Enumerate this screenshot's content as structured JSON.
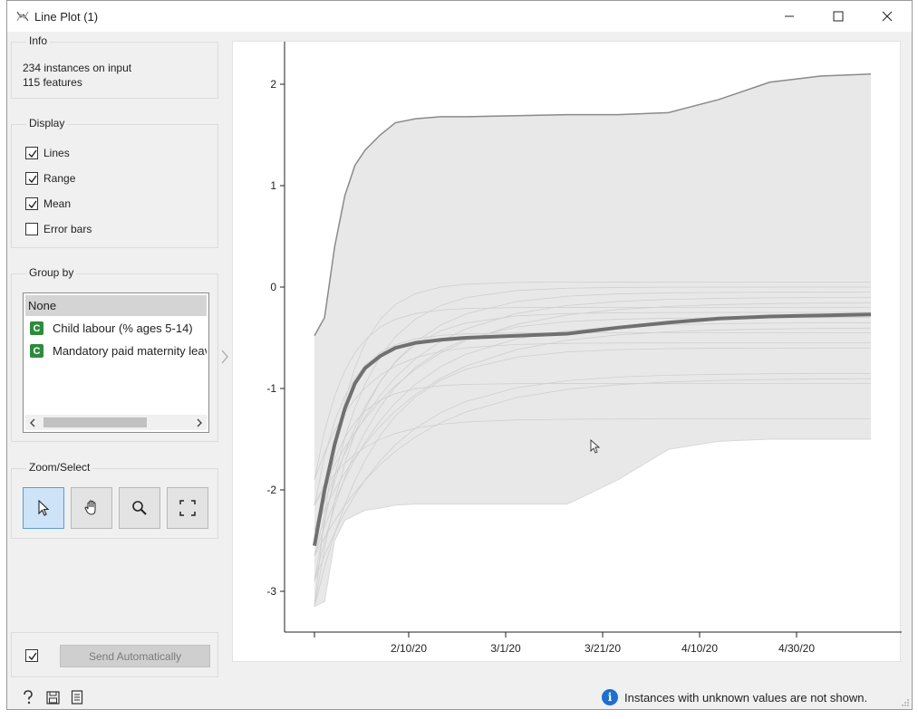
{
  "window": {
    "title": "Line Plot (1)"
  },
  "info": {
    "title": "Info",
    "instances": "234 instances on input",
    "features": "115 features"
  },
  "display": {
    "title": "Display",
    "options": [
      {
        "label": "Lines",
        "checked": true
      },
      {
        "label": "Range",
        "checked": true
      },
      {
        "label": "Mean",
        "checked": true
      },
      {
        "label": "Error bars",
        "checked": false
      }
    ]
  },
  "group_by": {
    "title": "Group by",
    "items": [
      {
        "label": "None",
        "badge": "",
        "selected": true
      },
      {
        "label": "Child labour  (% ages 5-14)",
        "badge": "C",
        "selected": false
      },
      {
        "label": "Mandatory paid maternity leave",
        "badge": "C",
        "selected": false
      }
    ]
  },
  "zoom_select": {
    "title": "Zoom/Select",
    "tools": [
      {
        "name": "select-tool-button",
        "icon": "cursor-arrow-icon",
        "active": true
      },
      {
        "name": "pan-tool-button",
        "icon": "hand-icon",
        "active": false
      },
      {
        "name": "zoom-tool-button",
        "icon": "magnifier-icon",
        "active": false
      },
      {
        "name": "reset-zoom-button",
        "icon": "fit-view-icon",
        "active": false
      }
    ]
  },
  "send": {
    "label": "Send Automatically",
    "auto_checked": true
  },
  "status": {
    "message": "Instances with unknown values are not shown."
  },
  "chart_data": {
    "type": "line",
    "title": "",
    "xlabel": "",
    "ylabel": "",
    "x_tick_labels": [
      "2/10/20",
      "3/1/20",
      "3/21/20",
      "4/10/20",
      "4/30/20"
    ],
    "y_tick_labels": [
      "2",
      "1",
      "0",
      "-1",
      "-2",
      "-3"
    ],
    "ylim": [
      -3.4,
      2.4
    ],
    "x_days": [
      0,
      2,
      4,
      6,
      8,
      10,
      13,
      16,
      20,
      25,
      30,
      40,
      50,
      60,
      70,
      80,
      90,
      100,
      110
    ],
    "mean": [
      -2.55,
      -2.0,
      -1.55,
      -1.2,
      -0.95,
      -0.8,
      -0.68,
      -0.6,
      -0.55,
      -0.52,
      -0.5,
      -0.48,
      -0.46,
      -0.4,
      -0.35,
      -0.31,
      -0.29,
      -0.28,
      -0.27
    ],
    "range_max": [
      -0.48,
      -0.3,
      0.4,
      0.9,
      1.2,
      1.35,
      1.5,
      1.62,
      1.66,
      1.68,
      1.68,
      1.69,
      1.7,
      1.7,
      1.72,
      1.85,
      2.02,
      2.08,
      2.1
    ],
    "range_min": [
      -3.15,
      -3.1,
      -2.5,
      -2.3,
      -2.25,
      -2.2,
      -2.18,
      -2.15,
      -2.14,
      -2.14,
      -2.14,
      -2.14,
      -2.14,
      -1.9,
      -1.6,
      -1.52,
      -1.5,
      -1.5,
      -1.5
    ],
    "series_ends": [
      0.05,
      0.0,
      -0.05,
      -0.1,
      -0.15,
      -0.2,
      -0.25,
      -0.3,
      -0.35,
      -0.4,
      -0.45,
      -0.55,
      -0.6,
      -0.85,
      -0.9,
      -0.95,
      -1.3
    ]
  }
}
